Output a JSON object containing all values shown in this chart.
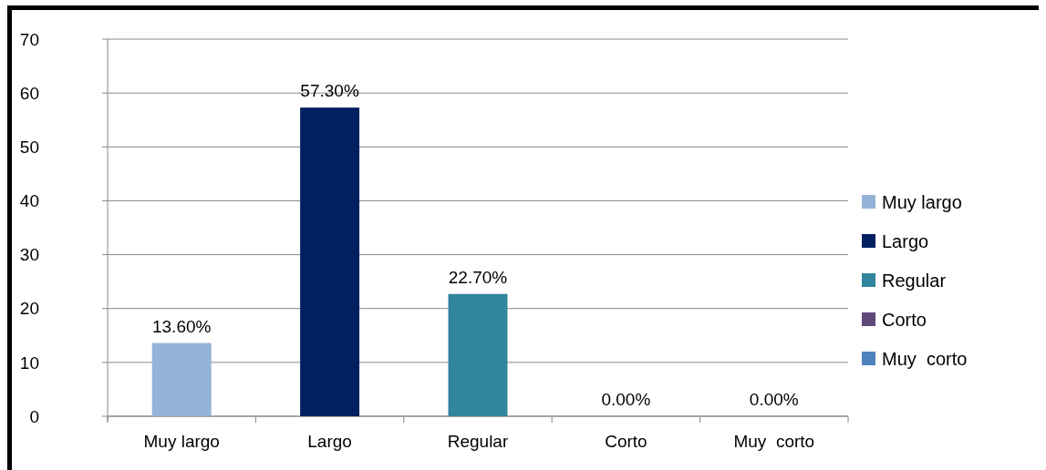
{
  "chart_data": {
    "type": "bar",
    "categories": [
      "Muy largo",
      "Largo",
      "Regular",
      "Corto",
      "Muy  corto"
    ],
    "series": [
      {
        "name": "Muy largo",
        "color": "#95b3d7",
        "values": [
          13.6,
          null,
          null,
          null,
          null
        ],
        "value_labels": [
          "13.60%",
          null,
          null,
          null,
          null
        ]
      },
      {
        "name": "Largo",
        "color": "#002060",
        "values": [
          null,
          57.3,
          null,
          null,
          null
        ],
        "value_labels": [
          null,
          "57.30%",
          null,
          null,
          null
        ]
      },
      {
        "name": "Regular",
        "color": "#31859c",
        "values": [
          null,
          null,
          22.7,
          null,
          null
        ],
        "value_labels": [
          null,
          null,
          "22.70%",
          null,
          null
        ]
      },
      {
        "name": "Corto",
        "color": "#604a7b",
        "values": [
          null,
          null,
          null,
          0,
          null
        ],
        "value_labels": [
          null,
          null,
          null,
          "0.00%",
          null
        ]
      },
      {
        "name": "Muy  corto",
        "color": "#4f81bd",
        "values": [
          null,
          null,
          null,
          null,
          0
        ],
        "value_labels": [
          null,
          null,
          null,
          null,
          "0.00%"
        ]
      }
    ],
    "ylim": [
      0,
      70
    ],
    "yticks": [
      0,
      10,
      20,
      30,
      40,
      50,
      60,
      70
    ],
    "grid": "y",
    "legend": "right"
  }
}
